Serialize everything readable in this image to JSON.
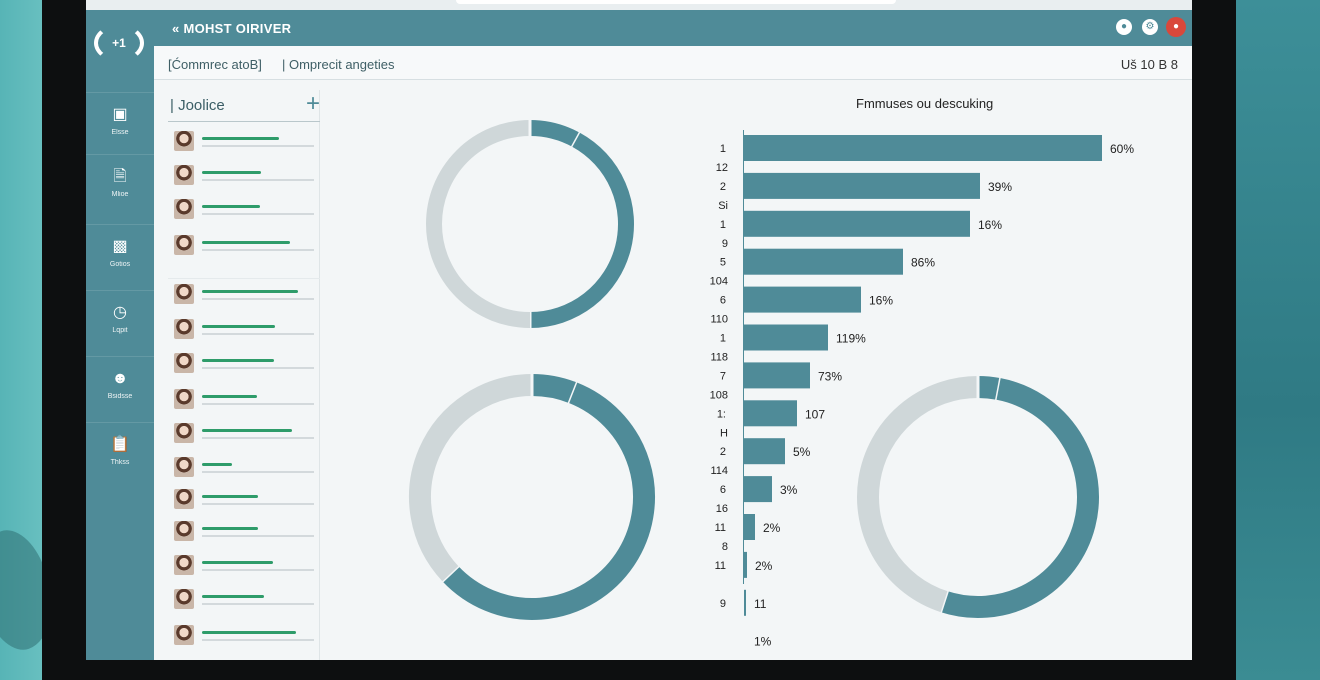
{
  "header": {
    "app_title": "« MOHST OIRIVER",
    "icons": [
      "record-icon",
      "settings-icon",
      "alert-icon",
      "share-icon",
      "profile-icon"
    ]
  },
  "subbar": {
    "crumb1": "[Ćommrec atoB]",
    "crumb2": "| Omprecit angeties",
    "right": "Uš 10 B 8"
  },
  "sidebar": {
    "logo": "+1",
    "items": [
      {
        "label": "Elsse",
        "icon": "folder-icon"
      },
      {
        "label": "Mlioe",
        "icon": "document-icon"
      },
      {
        "label": "Gotios",
        "icon": "image-icon"
      },
      {
        "label": "Lqpit",
        "icon": "clock-icon"
      },
      {
        "label": "Bsidsse",
        "icon": "people-icon"
      },
      {
        "label": "Thkss",
        "icon": "clipboard-icon"
      }
    ]
  },
  "list": {
    "title": "| Joolice",
    "add_label": "+",
    "rows": [
      {
        "fill": 0.69
      },
      {
        "fill": 0.53
      },
      {
        "fill": 0.52
      },
      {
        "fill": 0.79
      },
      {
        "fill": 0.86
      },
      {
        "fill": 0.65
      },
      {
        "fill": 0.64
      },
      {
        "fill": 0.49
      },
      {
        "fill": 0.8
      },
      {
        "fill": 0.27
      },
      {
        "fill": 0.5
      },
      {
        "fill": 0.5
      },
      {
        "fill": 0.63
      },
      {
        "fill": 0.55
      },
      {
        "fill": 0.84
      }
    ]
  },
  "colors": {
    "accent": "#4f8b98",
    "ring_track": "#cfd7d9",
    "list_bar": "#2e9c6a"
  },
  "chart_data": [
    {
      "type": "pie",
      "values": [
        8,
        42,
        50
      ],
      "colors": [
        "#4f8b98",
        "#4f8b98",
        "#cfd7d9"
      ]
    },
    {
      "type": "pie",
      "values": [
        6,
        57,
        37
      ],
      "colors": [
        "#4f8b98",
        "#4f8b98",
        "#cfd7d9"
      ]
    },
    {
      "type": "pie",
      "values": [
        3,
        52,
        45
      ],
      "colors": [
        "#4f8b98",
        "#4f8b98",
        "#cfd7d9"
      ]
    },
    {
      "type": "bar",
      "orientation": "horizontal",
      "title": "Fmmuses ou descuking",
      "rows": [
        {
          "tick": "1",
          "subtick": "12",
          "value": 358,
          "label": "60%"
        },
        {
          "tick": "2",
          "subtick": "Si",
          "value": 236,
          "label": "39%"
        },
        {
          "tick": "1",
          "subtick": "9",
          "value": 226,
          "label": "16%"
        },
        {
          "tick": "5",
          "subtick": "104",
          "value": 159,
          "label": "86%"
        },
        {
          "tick": "6",
          "subtick": "110",
          "value": 117,
          "label": "16%"
        },
        {
          "tick": "1",
          "subtick": "118",
          "value": 84,
          "label": "119%"
        },
        {
          "tick": "7",
          "subtick": "108",
          "value": 66,
          "label": "73%"
        },
        {
          "tick": "1:",
          "subtick": "H",
          "value": 53,
          "label": "107"
        },
        {
          "tick": "2",
          "subtick": "114",
          "value": 41,
          "label": "5%"
        },
        {
          "tick": "6",
          "subtick": "16",
          "value": 28,
          "label": "3%"
        },
        {
          "tick": "11",
          "subtick": "8",
          "value": 11,
          "label": "2%"
        },
        {
          "tick": "11",
          "subtick": "",
          "value": 3,
          "label": "2%"
        },
        {
          "tick": "9",
          "subtick": "",
          "value": 1,
          "label": "11"
        },
        {
          "tick": "",
          "subtick": "",
          "value": 0,
          "label": "1%"
        }
      ]
    }
  ]
}
